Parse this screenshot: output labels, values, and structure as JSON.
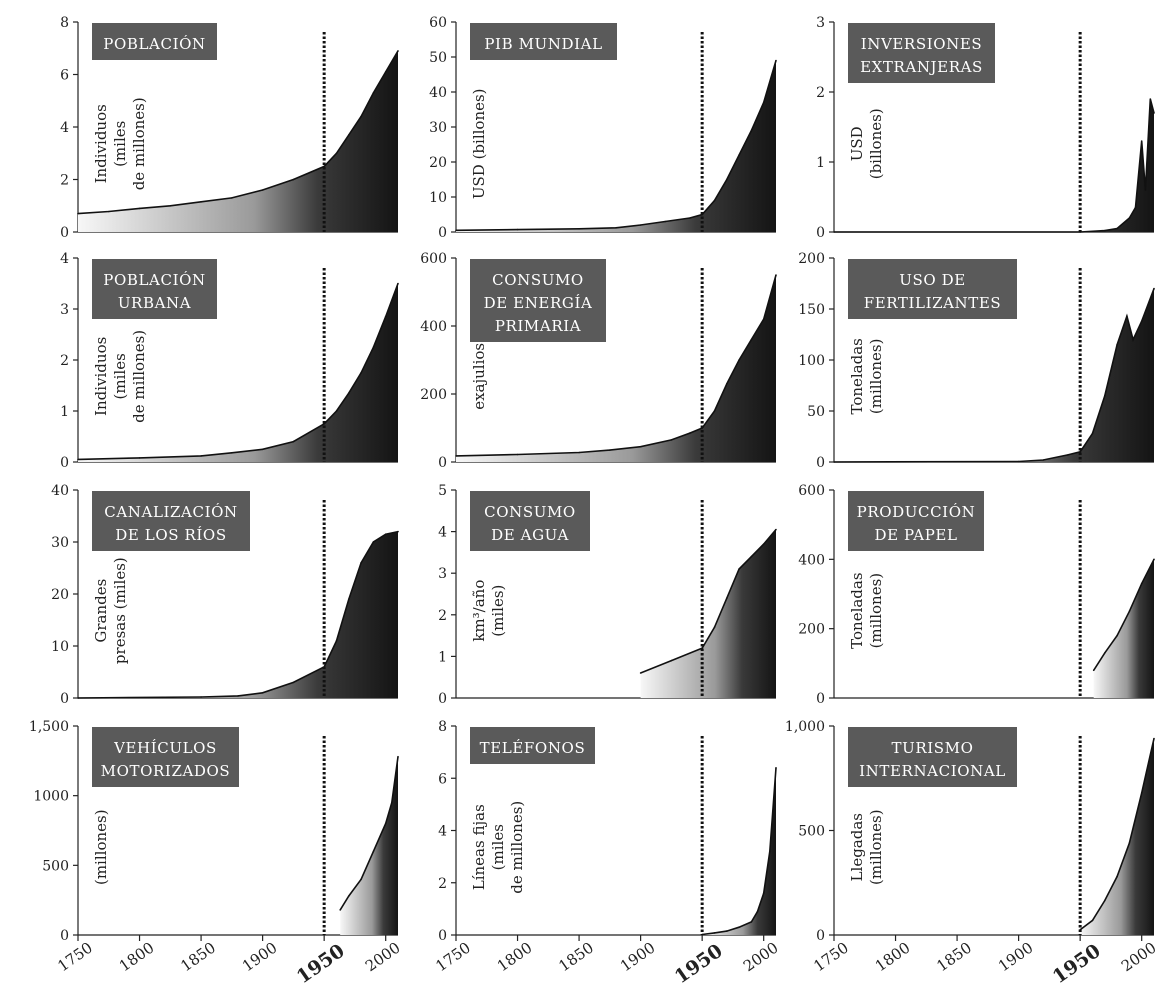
{
  "page": {
    "x_ticks": [
      "1750",
      "1800",
      "1850",
      "1900",
      "1950",
      "2000"
    ],
    "marker_year": 1950
  },
  "colors": {
    "fill_light": "#f6f6f6",
    "fill_dark": "#1c1c1c",
    "title_box": "#5a5a5a",
    "line": "#111111"
  },
  "chart_data": [
    {
      "type": "area",
      "title": [
        "POBLACIÓN"
      ],
      "ylabel": [
        "Individuos",
        "(miles",
        "de millones)"
      ],
      "ylim": [
        0,
        8
      ],
      "yticks": [
        "0",
        "2",
        "4",
        "6",
        "8"
      ],
      "x": [
        1750,
        1775,
        1800,
        1825,
        1850,
        1875,
        1900,
        1925,
        1950,
        1960,
        1970,
        1980,
        1990,
        2000,
        2010
      ],
      "values": [
        0.7,
        0.78,
        0.9,
        1.0,
        1.15,
        1.3,
        1.6,
        2.0,
        2.5,
        3.0,
        3.7,
        4.4,
        5.3,
        6.1,
        6.9
      ]
    },
    {
      "type": "area",
      "title": [
        "PIB MUNDIAL"
      ],
      "ylabel": [
        "USD (billones)"
      ],
      "ylim": [
        0,
        60
      ],
      "yticks": [
        "0",
        "10",
        "20",
        "30",
        "40",
        "50",
        "60"
      ],
      "x": [
        1750,
        1800,
        1850,
        1880,
        1900,
        1920,
        1940,
        1950,
        1960,
        1970,
        1980,
        1990,
        2000,
        2010
      ],
      "values": [
        0.5,
        0.7,
        0.9,
        1.2,
        2.0,
        3.0,
        4.0,
        5.0,
        9.0,
        15.0,
        22.0,
        29.0,
        37.0,
        49.0
      ]
    },
    {
      "type": "area",
      "title": [
        "INVERSIONES",
        "EXTRANJERAS"
      ],
      "ylabel": [
        "USD",
        "(billones)"
      ],
      "ylim": [
        0,
        3
      ],
      "yticks": [
        "0",
        "1",
        "2",
        "3"
      ],
      "x": [
        1750,
        1950,
        1970,
        1980,
        1990,
        1995,
        2000,
        2003,
        2007,
        2010
      ],
      "values": [
        0,
        0,
        0.02,
        0.05,
        0.2,
        0.35,
        1.3,
        0.6,
        1.9,
        1.7
      ]
    },
    {
      "type": "area",
      "title": [
        "POBLACIÓN",
        "URBANA"
      ],
      "ylabel": [
        "Individuos",
        "(miles",
        "de millones)"
      ],
      "ylim": [
        0,
        4
      ],
      "yticks": [
        "0",
        "1",
        "2",
        "3",
        "4"
      ],
      "x": [
        1750,
        1800,
        1850,
        1875,
        1900,
        1925,
        1950,
        1960,
        1970,
        1980,
        1990,
        2000,
        2010
      ],
      "values": [
        0.05,
        0.08,
        0.12,
        0.18,
        0.25,
        0.4,
        0.75,
        1.0,
        1.35,
        1.75,
        2.25,
        2.85,
        3.5
      ]
    },
    {
      "type": "area",
      "title": [
        "CONSUMO",
        "DE ENERGÍA",
        "PRIMARIA"
      ],
      "ylabel": [
        "exajulios"
      ],
      "ylim": [
        0,
        600
      ],
      "yticks": [
        "0",
        "200",
        "400",
        "600"
      ],
      "x": [
        1750,
        1800,
        1850,
        1875,
        1900,
        1925,
        1940,
        1950,
        1960,
        1970,
        1980,
        1990,
        2000,
        2010
      ],
      "values": [
        18,
        22,
        28,
        35,
        45,
        65,
        85,
        100,
        150,
        230,
        300,
        360,
        420,
        550
      ]
    },
    {
      "type": "area",
      "title": [
        "USO DE",
        "FERTILIZANTES"
      ],
      "ylabel": [
        "Toneladas",
        "(millones)"
      ],
      "ylim": [
        0,
        200
      ],
      "yticks": [
        "0",
        "50",
        "100",
        "150",
        "200"
      ],
      "x": [
        1750,
        1900,
        1920,
        1940,
        1950,
        1960,
        1970,
        1980,
        1988,
        1993,
        2000,
        2010
      ],
      "values": [
        0,
        0.5,
        2,
        7,
        10,
        28,
        65,
        115,
        143,
        120,
        138,
        170
      ]
    },
    {
      "type": "area",
      "title": [
        "CANALIZACIÓN",
        "DE LOS RÍOS"
      ],
      "ylabel": [
        "Grandes",
        "presas (miles)"
      ],
      "ylim": [
        0,
        40
      ],
      "yticks": [
        "0",
        "10",
        "20",
        "30",
        "40"
      ],
      "x": [
        1750,
        1850,
        1880,
        1900,
        1925,
        1950,
        1960,
        1970,
        1980,
        1990,
        2000,
        2010
      ],
      "values": [
        0,
        0.2,
        0.4,
        1.0,
        3.0,
        6.0,
        11.0,
        19.0,
        26.0,
        30.0,
        31.5,
        32.0
      ]
    },
    {
      "type": "area",
      "title": [
        "CONSUMO",
        "DE AGUA"
      ],
      "ylabel": [
        "km³/año",
        "(miles)"
      ],
      "ylim": [
        0,
        5
      ],
      "yticks": [
        "0",
        "1",
        "2",
        "3",
        "4",
        "5"
      ],
      "x": [
        1900,
        1925,
        1950,
        1960,
        1970,
        1980,
        1990,
        2000,
        2010
      ],
      "values": [
        0.6,
        0.9,
        1.2,
        1.7,
        2.4,
        3.1,
        3.4,
        3.7,
        4.05
      ]
    },
    {
      "type": "area",
      "title": [
        "PRODUCCIÓN",
        "DE PAPEL"
      ],
      "ylabel": [
        "Toneladas",
        "(millones)"
      ],
      "ylim": [
        0,
        600
      ],
      "yticks": [
        "0",
        "200",
        "400",
        "600"
      ],
      "x": [
        1961,
        1970,
        1980,
        1990,
        2000,
        2010
      ],
      "values": [
        80,
        130,
        180,
        250,
        330,
        400
      ]
    },
    {
      "type": "area",
      "title": [
        "VEHÍCULOS",
        "MOTORIZADOS"
      ],
      "ylabel": [
        "(millones)"
      ],
      "ylim": [
        0,
        1500
      ],
      "yticks": [
        "0",
        "500",
        "1000",
        "1,500"
      ],
      "x": [
        1963,
        1970,
        1980,
        1990,
        2000,
        2005,
        2010
      ],
      "values": [
        180,
        280,
        400,
        600,
        800,
        950,
        1280
      ]
    },
    {
      "type": "area",
      "title": [
        "TELÉFONOS"
      ],
      "ylabel": [
        "Líneas fijas",
        "(miles",
        "de millones)"
      ],
      "ylim": [
        0,
        8
      ],
      "yticks": [
        "0",
        "2",
        "4",
        "6",
        "8"
      ],
      "x": [
        1950,
        1960,
        1970,
        1980,
        1990,
        1995,
        2000,
        2005,
        2010
      ],
      "values": [
        0.02,
        0.08,
        0.15,
        0.3,
        0.5,
        0.9,
        1.6,
        3.2,
        6.4
      ]
    },
    {
      "type": "area",
      "title": [
        "TURISMO",
        "INTERNACIONAL"
      ],
      "ylabel": [
        "Llegadas",
        "(millones)"
      ],
      "ylim": [
        0,
        1000
      ],
      "yticks": [
        "0",
        "500",
        "1,000"
      ],
      "x": [
        1950,
        1960,
        1970,
        1980,
        1990,
        2000,
        2010
      ],
      "values": [
        25,
        70,
        165,
        280,
        440,
        680,
        940
      ]
    }
  ]
}
